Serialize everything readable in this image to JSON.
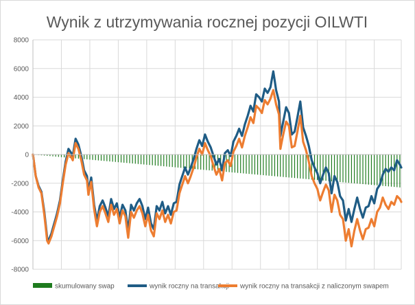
{
  "chart_data": {
    "type": "bar+line",
    "title": "Wynik z utrzymywania rocznej pozycji OILWTI",
    "xlabel": "",
    "ylabel": "",
    "ylim": [
      -8000,
      8000
    ],
    "yticks": [
      8000,
      6000,
      4000,
      2000,
      0,
      -2000,
      -4000,
      -6000,
      -8000
    ],
    "ytick_labels": [
      "8000",
      "6000",
      "4000",
      "2000",
      "0",
      "-2000",
      "-4000",
      "-6000",
      "-8000"
    ],
    "grid": true,
    "legend_position": "bottom",
    "x_count": 260,
    "colors": {
      "swap": "#1e7b1e",
      "trade": "#1f5c85",
      "trade_with_swap": "#ed7d31",
      "grid": "#d9d9d9",
      "axis": "#bfbfbf",
      "text": "#595959"
    },
    "series": [
      {
        "name": "skumulowany swap",
        "kind": "bar",
        "color": "#1e7b1e",
        "keypoints": [
          [
            0,
            0
          ],
          [
            259,
            -2300
          ]
        ]
      },
      {
        "name": "wynik roczny na transakcji",
        "kind": "line",
        "color": "#1f5c85",
        "keypoints": [
          [
            0,
            0
          ],
          [
            2,
            -1500
          ],
          [
            4,
            -2200
          ],
          [
            6,
            -2600
          ],
          [
            8,
            -4000
          ],
          [
            10,
            -5800
          ],
          [
            11,
            -6000
          ],
          [
            13,
            -5500
          ],
          [
            15,
            -4800
          ],
          [
            17,
            -4100
          ],
          [
            19,
            -3200
          ],
          [
            21,
            -1800
          ],
          [
            23,
            -500
          ],
          [
            25,
            400
          ],
          [
            27,
            100
          ],
          [
            28,
            -100
          ],
          [
            30,
            1100
          ],
          [
            32,
            700
          ],
          [
            34,
            -100
          ],
          [
            36,
            -1100
          ],
          [
            38,
            -1500
          ],
          [
            39,
            -2500
          ],
          [
            41,
            -1600
          ],
          [
            43,
            -3500
          ],
          [
            45,
            -4600
          ],
          [
            47,
            -3600
          ],
          [
            49,
            -3200
          ],
          [
            51,
            -3700
          ],
          [
            53,
            -4300
          ],
          [
            55,
            -3100
          ],
          [
            57,
            -3800
          ],
          [
            59,
            -3400
          ],
          [
            61,
            -4400
          ],
          [
            63,
            -3500
          ],
          [
            65,
            -3900
          ],
          [
            67,
            -5300
          ],
          [
            69,
            -3500
          ],
          [
            71,
            -3900
          ],
          [
            73,
            -3400
          ],
          [
            75,
            -3100
          ],
          [
            77,
            -3600
          ],
          [
            79,
            -4500
          ],
          [
            81,
            -3700
          ],
          [
            83,
            -4800
          ],
          [
            85,
            -5200
          ],
          [
            87,
            -3600
          ],
          [
            89,
            -3900
          ],
          [
            91,
            -3300
          ],
          [
            93,
            -4100
          ],
          [
            95,
            -3600
          ],
          [
            97,
            -4200
          ],
          [
            99,
            -3400
          ],
          [
            101,
            -3300
          ],
          [
            103,
            -2100
          ],
          [
            105,
            -1500
          ],
          [
            107,
            -900
          ],
          [
            109,
            -1400
          ],
          [
            111,
            -900
          ],
          [
            113,
            -300
          ],
          [
            115,
            400
          ],
          [
            117,
            1000
          ],
          [
            119,
            600
          ],
          [
            121,
            1400
          ],
          [
            123,
            900
          ],
          [
            125,
            500
          ],
          [
            127,
            -100
          ],
          [
            129,
            -700
          ],
          [
            131,
            -300
          ],
          [
            133,
            -1100
          ],
          [
            135,
            100
          ],
          [
            137,
            300
          ],
          [
            139,
            -100
          ],
          [
            141,
            900
          ],
          [
            143,
            1300
          ],
          [
            145,
            1800
          ],
          [
            147,
            1300
          ],
          [
            149,
            2100
          ],
          [
            151,
            2700
          ],
          [
            153,
            3400
          ],
          [
            155,
            3000
          ],
          [
            157,
            4200
          ],
          [
            159,
            4000
          ],
          [
            161,
            3700
          ],
          [
            163,
            4600
          ],
          [
            165,
            4300
          ],
          [
            167,
            4700
          ],
          [
            169,
            5800
          ],
          [
            171,
            4500
          ],
          [
            173,
            3700
          ],
          [
            174,
            1300
          ],
          [
            176,
            2300
          ],
          [
            178,
            3300
          ],
          [
            180,
            2900
          ],
          [
            182,
            1400
          ],
          [
            184,
            1600
          ],
          [
            186,
            2600
          ],
          [
            188,
            3700
          ],
          [
            190,
            1900
          ],
          [
            192,
            1300
          ],
          [
            194,
            600
          ],
          [
            196,
            -400
          ],
          [
            198,
            -900
          ],
          [
            200,
            -1300
          ],
          [
            202,
            -2000
          ],
          [
            204,
            -1400
          ],
          [
            206,
            -900
          ],
          [
            208,
            -1300
          ],
          [
            210,
            -2700
          ],
          [
            212,
            -1500
          ],
          [
            214,
            -1900
          ],
          [
            216,
            -2900
          ],
          [
            218,
            -3200
          ],
          [
            220,
            -4600
          ],
          [
            222,
            -3800
          ],
          [
            224,
            -4700
          ],
          [
            226,
            -3800
          ],
          [
            228,
            -3000
          ],
          [
            230,
            -3800
          ],
          [
            232,
            -4400
          ],
          [
            234,
            -3700
          ],
          [
            236,
            -3600
          ],
          [
            238,
            -2900
          ],
          [
            240,
            -3400
          ],
          [
            242,
            -2400
          ],
          [
            244,
            -2100
          ],
          [
            246,
            -1400
          ],
          [
            248,
            -1000
          ],
          [
            250,
            -1200
          ],
          [
            252,
            -900
          ],
          [
            254,
            -1100
          ],
          [
            256,
            -400
          ],
          [
            258,
            -700
          ],
          [
            259,
            -900
          ]
        ]
      },
      {
        "name": "wynik roczny na transakcji z naliczonym swapem",
        "kind": "line",
        "color": "#ed7d31",
        "keypoints": [
          [
            0,
            0
          ],
          [
            2,
            -1500
          ],
          [
            4,
            -2300
          ],
          [
            6,
            -2700
          ],
          [
            8,
            -4200
          ],
          [
            10,
            -6000
          ],
          [
            11,
            -6200
          ],
          [
            13,
            -5700
          ],
          [
            15,
            -5000
          ],
          [
            17,
            -4300
          ],
          [
            19,
            -3400
          ],
          [
            21,
            -2000
          ],
          [
            23,
            -700
          ],
          [
            25,
            100
          ],
          [
            27,
            -200
          ],
          [
            28,
            -400
          ],
          [
            30,
            800
          ],
          [
            32,
            400
          ],
          [
            34,
            -400
          ],
          [
            36,
            -1400
          ],
          [
            38,
            -1800
          ],
          [
            39,
            -2800
          ],
          [
            41,
            -1900
          ],
          [
            43,
            -3800
          ],
          [
            45,
            -5000
          ],
          [
            47,
            -4000
          ],
          [
            49,
            -3600
          ],
          [
            51,
            -4100
          ],
          [
            53,
            -4700
          ],
          [
            55,
            -3500
          ],
          [
            57,
            -4200
          ],
          [
            59,
            -3800
          ],
          [
            61,
            -4800
          ],
          [
            63,
            -3900
          ],
          [
            65,
            -4300
          ],
          [
            67,
            -5800
          ],
          [
            69,
            -4000
          ],
          [
            71,
            -4400
          ],
          [
            73,
            -3900
          ],
          [
            75,
            -3600
          ],
          [
            77,
            -4100
          ],
          [
            79,
            -5000
          ],
          [
            81,
            -4200
          ],
          [
            83,
            -5300
          ],
          [
            85,
            -5700
          ],
          [
            87,
            -4100
          ],
          [
            89,
            -4500
          ],
          [
            91,
            -3900
          ],
          [
            93,
            -4700
          ],
          [
            95,
            -4200
          ],
          [
            97,
            -4800
          ],
          [
            99,
            -4000
          ],
          [
            101,
            -3900
          ],
          [
            103,
            -2700
          ],
          [
            105,
            -2100
          ],
          [
            107,
            -1500
          ],
          [
            109,
            -2000
          ],
          [
            111,
            -1500
          ],
          [
            113,
            -900
          ],
          [
            115,
            -200
          ],
          [
            117,
            400
          ],
          [
            119,
            0
          ],
          [
            121,
            800
          ],
          [
            123,
            300
          ],
          [
            125,
            -100
          ],
          [
            127,
            -800
          ],
          [
            129,
            -1400
          ],
          [
            131,
            -1000
          ],
          [
            133,
            -1800
          ],
          [
            135,
            -600
          ],
          [
            137,
            -400
          ],
          [
            139,
            -800
          ],
          [
            141,
            200
          ],
          [
            143,
            600
          ],
          [
            145,
            1100
          ],
          [
            147,
            500
          ],
          [
            149,
            1300
          ],
          [
            151,
            1900
          ],
          [
            153,
            2600
          ],
          [
            155,
            2200
          ],
          [
            157,
            3400
          ],
          [
            159,
            3200
          ],
          [
            161,
            2900
          ],
          [
            163,
            3800
          ],
          [
            165,
            3500
          ],
          [
            167,
            3900
          ],
          [
            169,
            4500
          ],
          [
            171,
            3500
          ],
          [
            173,
            2800
          ],
          [
            174,
            400
          ],
          [
            176,
            1400
          ],
          [
            178,
            2300
          ],
          [
            180,
            2000
          ],
          [
            182,
            500
          ],
          [
            184,
            600
          ],
          [
            186,
            1600
          ],
          [
            188,
            2700
          ],
          [
            190,
            900
          ],
          [
            192,
            300
          ],
          [
            194,
            -500
          ],
          [
            196,
            -1500
          ],
          [
            198,
            -2000
          ],
          [
            200,
            -2400
          ],
          [
            202,
            -3200
          ],
          [
            204,
            -2600
          ],
          [
            206,
            -2100
          ],
          [
            208,
            -2500
          ],
          [
            210,
            -4000
          ],
          [
            212,
            -2800
          ],
          [
            214,
            -3200
          ],
          [
            216,
            -4200
          ],
          [
            218,
            -4500
          ],
          [
            220,
            -6000
          ],
          [
            222,
            -5200
          ],
          [
            224,
            -6400
          ],
          [
            226,
            -5300
          ],
          [
            228,
            -4500
          ],
          [
            230,
            -5300
          ],
          [
            232,
            -5900
          ],
          [
            234,
            -5200
          ],
          [
            236,
            -5100
          ],
          [
            238,
            -4500
          ],
          [
            240,
            -5000
          ],
          [
            242,
            -4000
          ],
          [
            244,
            -3700
          ],
          [
            246,
            -3000
          ],
          [
            248,
            -3500
          ],
          [
            250,
            -3800
          ],
          [
            252,
            -3300
          ],
          [
            254,
            -3500
          ],
          [
            256,
            -2900
          ],
          [
            258,
            -3100
          ],
          [
            259,
            -3300
          ]
        ]
      }
    ]
  }
}
